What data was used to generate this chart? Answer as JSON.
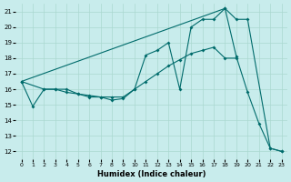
{
  "xlabel": "Humidex (Indice chaleur)",
  "bg_color": "#c8ecec",
  "line_color": "#006b6b",
  "grid_color": "#aad8d0",
  "xlim": [
    -0.5,
    23.5
  ],
  "ylim": [
    11.5,
    21.5
  ],
  "xticks": [
    0,
    1,
    2,
    3,
    4,
    5,
    6,
    7,
    8,
    9,
    10,
    11,
    12,
    13,
    14,
    15,
    16,
    17,
    18,
    19,
    20,
    21,
    22,
    23
  ],
  "yticks": [
    12,
    13,
    14,
    15,
    16,
    17,
    18,
    19,
    20,
    21
  ],
  "line1_x": [
    0,
    1,
    2,
    3,
    4,
    5,
    6,
    7,
    8,
    9,
    10,
    11,
    12,
    13,
    14,
    15,
    16,
    17,
    18,
    19,
    20,
    21,
    22,
    23
  ],
  "line1_y": [
    16.5,
    14.9,
    16.0,
    16.0,
    16.0,
    15.7,
    15.5,
    15.5,
    15.3,
    15.4,
    16.0,
    18.2,
    18.5,
    19.0,
    16.0,
    20.0,
    20.5,
    20.5,
    21.2,
    18.1,
    15.8,
    13.8,
    12.2,
    12.0
  ],
  "line2_x": [
    0,
    2,
    3,
    4,
    5,
    6,
    7,
    8,
    9,
    10,
    11,
    12,
    13,
    14,
    15,
    16,
    17,
    18,
    19
  ],
  "line2_y": [
    16.5,
    16.0,
    16.0,
    15.8,
    15.7,
    15.6,
    15.5,
    15.5,
    15.5,
    16.0,
    16.5,
    17.0,
    17.5,
    17.9,
    18.3,
    18.5,
    18.7,
    18.0,
    18.0
  ],
  "line3_x": [
    0,
    18,
    19,
    20,
    22,
    23
  ],
  "line3_y": [
    16.5,
    21.2,
    20.5,
    20.5,
    12.2,
    12.0
  ]
}
